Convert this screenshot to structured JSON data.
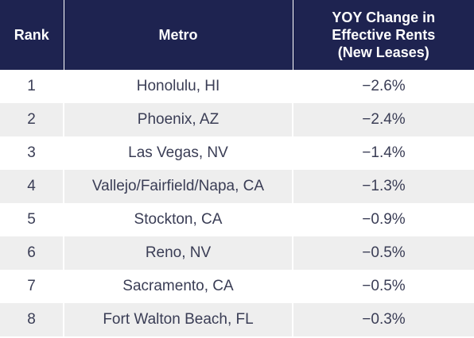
{
  "chart_data": {
    "type": "table",
    "columns": [
      "Rank",
      "Metro",
      "YOY Change in Effective Rents (New Leases)"
    ],
    "header_lines": {
      "rank": "Rank",
      "metro": "Metro",
      "change": [
        "YOY Change in",
        "Effective Rents",
        "(New Leases)"
      ]
    },
    "rows": [
      {
        "rank": "1",
        "metro": "Honolulu, HI",
        "change": "−2.6%"
      },
      {
        "rank": "2",
        "metro": "Phoenix, AZ",
        "change": "−2.4%"
      },
      {
        "rank": "3",
        "metro": "Las Vegas, NV",
        "change": "−1.4%"
      },
      {
        "rank": "4",
        "metro": "Vallejo/Fairfield/Napa, CA",
        "change": "−1.3%"
      },
      {
        "rank": "5",
        "metro": "Stockton, CA",
        "change": "−0.9%"
      },
      {
        "rank": "6",
        "metro": "Reno, NV",
        "change": "−0.5%"
      },
      {
        "rank": "7",
        "metro": "Sacramento, CA",
        "change": "−0.5%"
      },
      {
        "rank": "8",
        "metro": "Fort Walton Beach, FL",
        "change": "−0.3%"
      }
    ]
  },
  "colors": {
    "header_bg": "#1e2350",
    "header_text": "#ffffff",
    "row_alt_bg": "#eeeeee",
    "body_text": "#3a3d55"
  }
}
